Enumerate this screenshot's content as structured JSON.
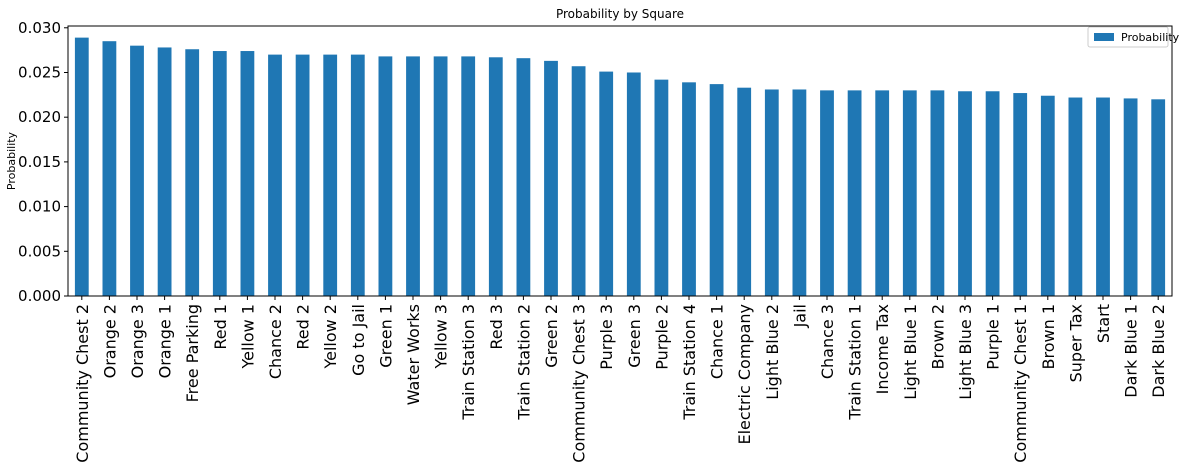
{
  "chart_data": {
    "type": "bar",
    "title": "Probability by Square",
    "xlabel": "",
    "ylabel": "Probability",
    "ylim": [
      0,
      0.0302
    ],
    "yticks": [
      "0.000",
      "0.005",
      "0.010",
      "0.015",
      "0.020",
      "0.025",
      "0.030"
    ],
    "grid": false,
    "legend_position": "top-right",
    "categories": [
      "Community Chest 2",
      "Orange 2",
      "Orange 3",
      "Orange 1",
      "Free Parking",
      "Red 1",
      "Yellow 1",
      "Chance 2",
      "Red 2",
      "Yellow 2",
      "Go to Jail",
      "Green 1",
      "Water Works",
      "Yellow 3",
      "Train Station 3",
      "Red 3",
      "Train Station 2",
      "Green 2",
      "Community Chest 3",
      "Purple 3",
      "Green 3",
      "Purple 2",
      "Train Station 4",
      "Chance 1",
      "Electric Company",
      "Light Blue 2",
      "Jail",
      "Chance 3",
      "Train Station 1",
      "Income Tax",
      "Light Blue 1",
      "Brown 2",
      "Light Blue 3",
      "Purple 1",
      "Community Chest 1",
      "Brown 1",
      "Super Tax",
      "Start",
      "Dark Blue 1",
      "Dark Blue 2"
    ],
    "series": [
      {
        "name": "Probability",
        "color": "#1f77b4",
        "values": [
          0.0289,
          0.0285,
          0.028,
          0.0278,
          0.0276,
          0.0274,
          0.0274,
          0.027,
          0.027,
          0.027,
          0.027,
          0.0268,
          0.0268,
          0.0268,
          0.0268,
          0.0267,
          0.0266,
          0.0263,
          0.0257,
          0.0251,
          0.025,
          0.0242,
          0.0239,
          0.0237,
          0.0233,
          0.0231,
          0.0231,
          0.023,
          0.023,
          0.023,
          0.023,
          0.023,
          0.0229,
          0.0229,
          0.0227,
          0.0224,
          0.0222,
          0.0222,
          0.0221,
          0.022
        ]
      }
    ]
  }
}
